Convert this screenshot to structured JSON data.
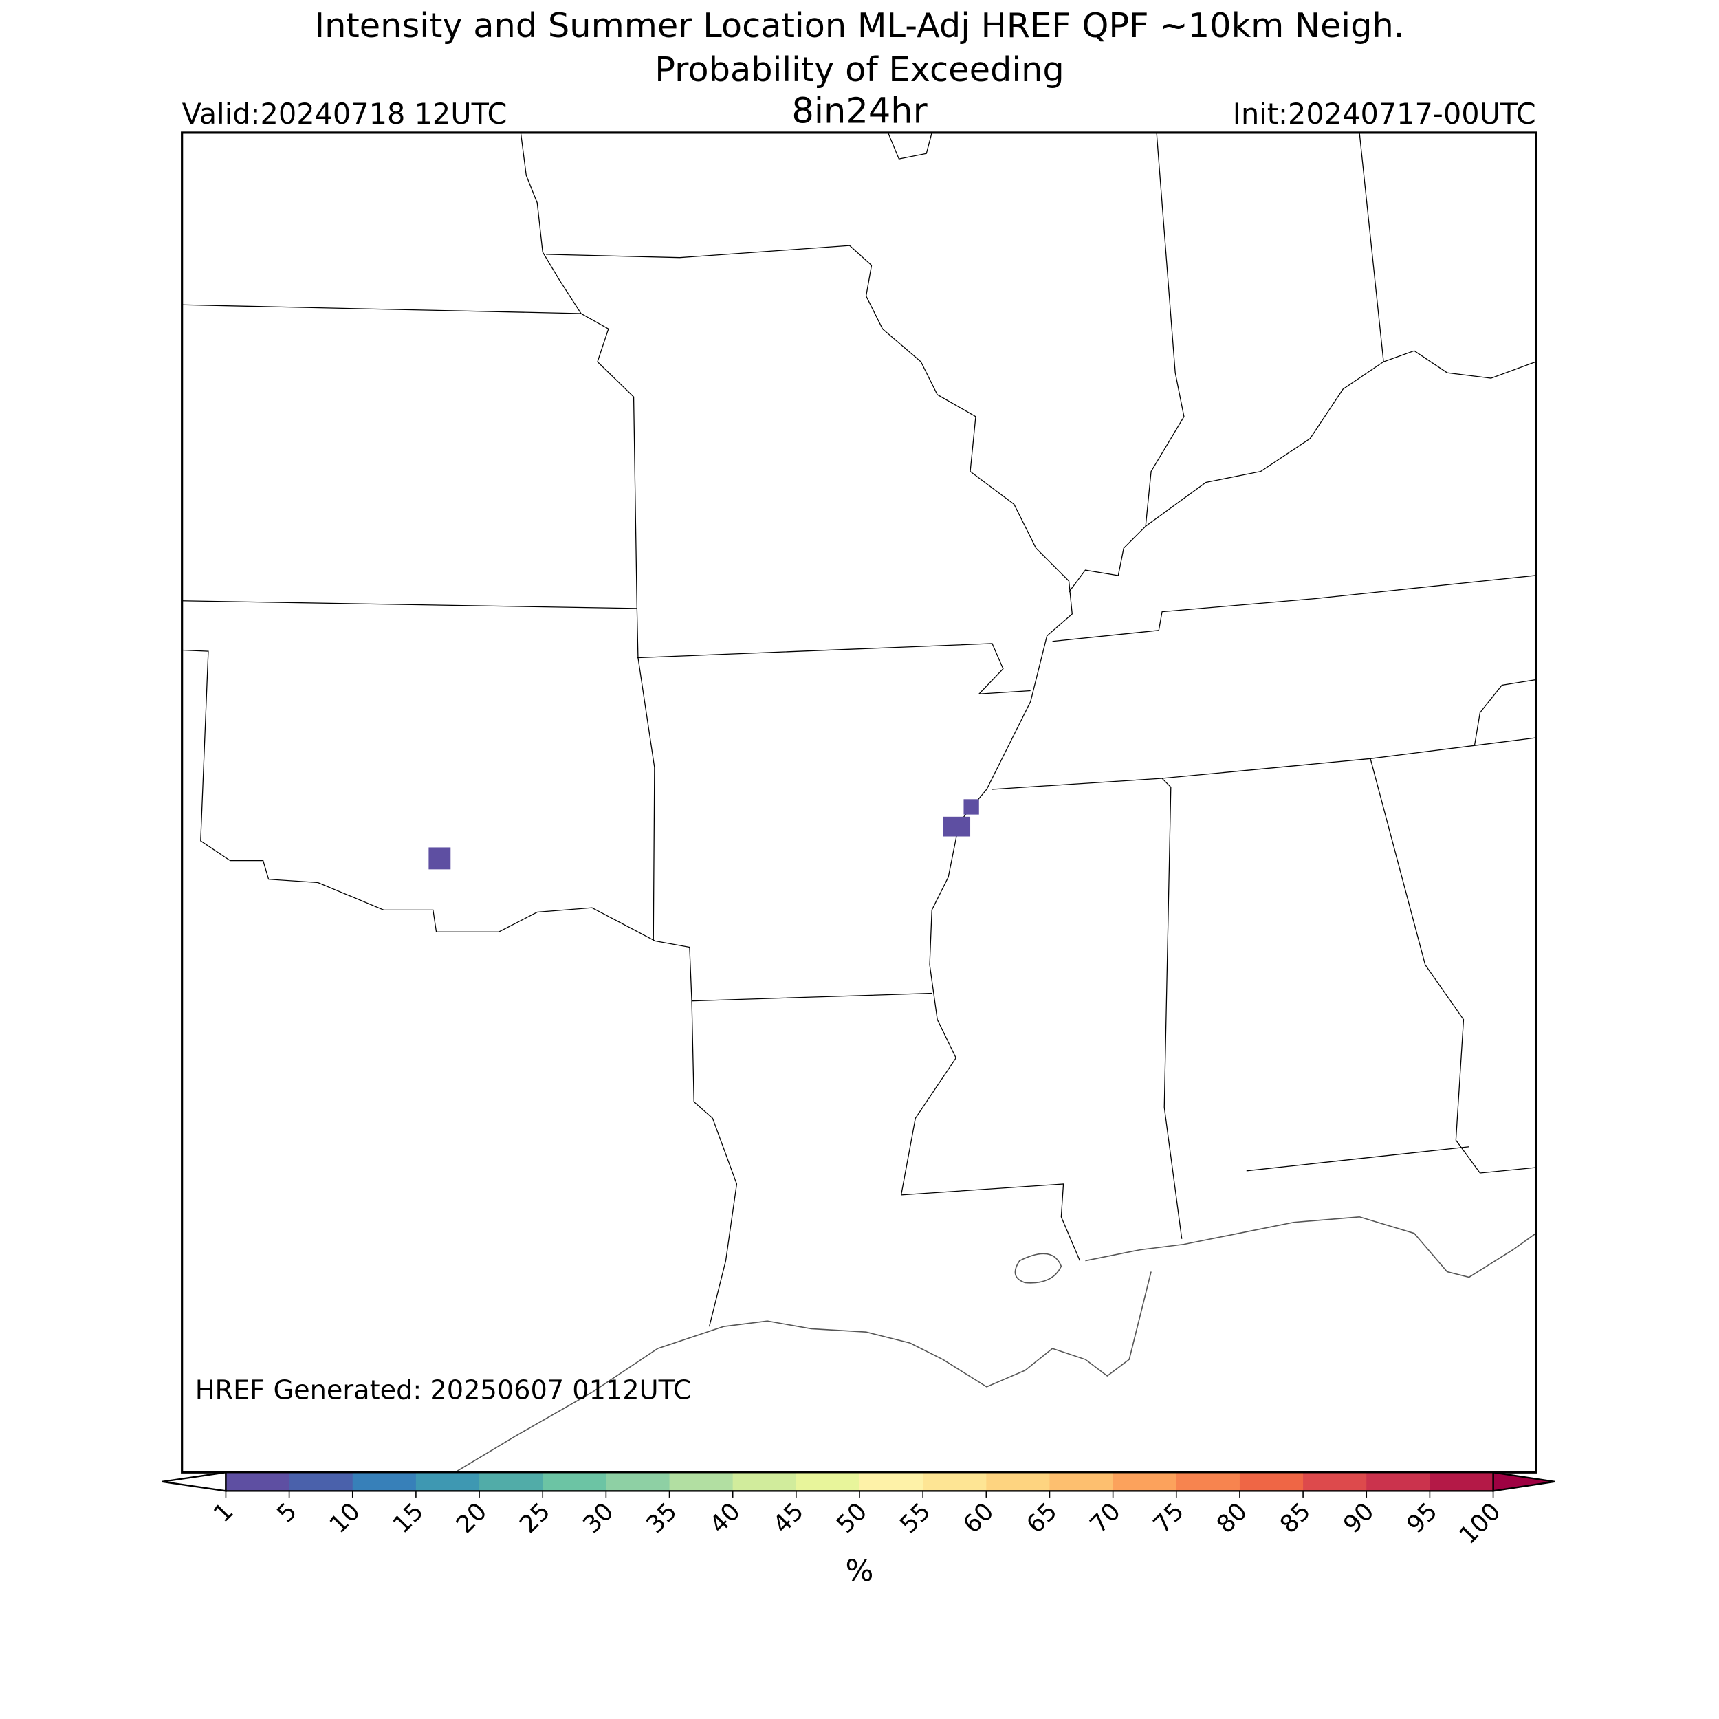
{
  "header": {
    "title": "Intensity and Summer Location ML-Adj HREF QPF ~10km Neigh.",
    "subtitle": "Probability of Exceeding",
    "threshold": "8in24hr",
    "valid": "Valid:20240718 12UTC",
    "init": "Init:20240717-00UTC"
  },
  "map": {
    "footnote": "HREF Generated: 20250607 0112UTC"
  },
  "colorbar": {
    "ticks": [
      1,
      5,
      10,
      15,
      20,
      25,
      30,
      35,
      40,
      45,
      50,
      55,
      60,
      65,
      70,
      75,
      80,
      85,
      90,
      95,
      100
    ],
    "colors": [
      "#5e4fa2",
      "#4a61ab",
      "#3780b9",
      "#3e98b2",
      "#51aca8",
      "#6cc4a4",
      "#8ed0a4",
      "#b2dfa2",
      "#d1ec9c",
      "#e8f59b",
      "#fef2a8",
      "#fee594",
      "#fed480",
      "#fdbf6f",
      "#fca25c",
      "#f7844f",
      "#ef6645",
      "#dd4a4c",
      "#cb334d",
      "#b41947"
    ],
    "under_color": "#ffffff",
    "over_color": "#9e0142",
    "label": "%"
  }
}
